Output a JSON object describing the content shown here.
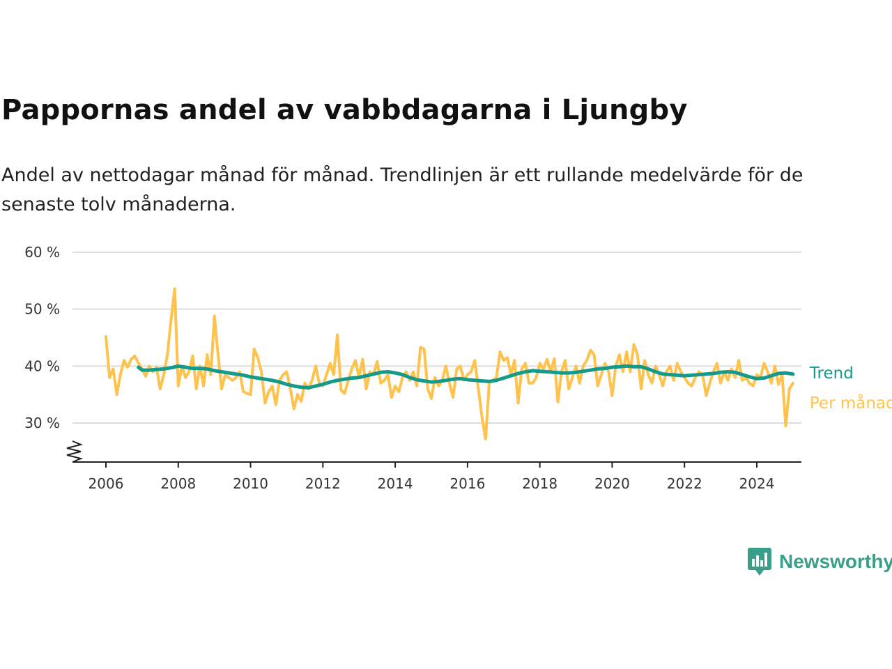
{
  "title": "Pappornas andel av vabbdagarna i Ljungby",
  "subtitle": "Andel av nettodagar månad för månad. Trendlinjen är ett rullande medelvärde för de senaste tolv månaderna.",
  "brand": {
    "name": "Newsworthy",
    "icon": "newsworthy-logo-icon",
    "color": "#3a9e8a"
  },
  "chart_data": {
    "type": "line",
    "yticks": [
      30,
      40,
      50,
      60
    ],
    "ytick_labels": [
      "30 %",
      "40 %",
      "50 %",
      "60 %"
    ],
    "ylim": [
      23,
      60
    ],
    "ybreak": true,
    "xticks": [
      2006,
      2008,
      2010,
      2012,
      2014,
      2016,
      2018,
      2020,
      2022,
      2024
    ],
    "xtick_labels": [
      "2006",
      "2008",
      "2010",
      "2012",
      "2014",
      "2016",
      "2018",
      "2020",
      "2022",
      "2024"
    ],
    "xlim": [
      2005.0,
      2025.2
    ],
    "grid": true,
    "legend_placement": "right, inline labels",
    "series": [
      {
        "name": "Per månad",
        "color": "#ffc34d",
        "points": [
          [
            2006.0,
            45.2
          ],
          [
            2006.1,
            38.0
          ],
          [
            2006.2,
            39.5
          ],
          [
            2006.3,
            35.0
          ],
          [
            2006.4,
            38.5
          ],
          [
            2006.5,
            41.0
          ],
          [
            2006.6,
            39.8
          ],
          [
            2006.7,
            41.2
          ],
          [
            2006.8,
            41.8
          ],
          [
            2006.9,
            40.5
          ],
          [
            2007.0,
            39.5
          ],
          [
            2007.1,
            38.2
          ],
          [
            2007.2,
            40.0
          ],
          [
            2007.3,
            39.0
          ],
          [
            2007.4,
            39.8
          ],
          [
            2007.5,
            36.0
          ],
          [
            2007.6,
            38.5
          ],
          [
            2007.7,
            42.0
          ],
          [
            2007.8,
            48.0
          ],
          [
            2007.9,
            53.6
          ],
          [
            2008.0,
            36.5
          ],
          [
            2008.1,
            40.0
          ],
          [
            2008.2,
            38.0
          ],
          [
            2008.3,
            39.0
          ],
          [
            2008.4,
            41.8
          ],
          [
            2008.5,
            36.0
          ],
          [
            2008.6,
            40.0
          ],
          [
            2008.7,
            36.5
          ],
          [
            2008.8,
            42.0
          ],
          [
            2008.9,
            38.5
          ],
          [
            2009.0,
            48.8
          ],
          [
            2009.1,
            42.0
          ],
          [
            2009.2,
            36.0
          ],
          [
            2009.3,
            38.5
          ],
          [
            2009.4,
            38.0
          ],
          [
            2009.5,
            37.5
          ],
          [
            2009.6,
            38.0
          ],
          [
            2009.7,
            39.0
          ],
          [
            2009.8,
            35.5
          ],
          [
            2009.9,
            35.2
          ],
          [
            2010.0,
            35.0
          ],
          [
            2010.1,
            43.0
          ],
          [
            2010.2,
            41.5
          ],
          [
            2010.3,
            39.0
          ],
          [
            2010.4,
            33.5
          ],
          [
            2010.5,
            35.5
          ],
          [
            2010.6,
            36.5
          ],
          [
            2010.7,
            33.2
          ],
          [
            2010.8,
            37.5
          ],
          [
            2010.9,
            38.5
          ],
          [
            2011.0,
            39.0
          ],
          [
            2011.1,
            36.0
          ],
          [
            2011.2,
            32.5
          ],
          [
            2011.3,
            35.0
          ],
          [
            2011.4,
            33.8
          ],
          [
            2011.5,
            37.0
          ],
          [
            2011.6,
            36.0
          ],
          [
            2011.7,
            37.5
          ],
          [
            2011.8,
            40.0
          ],
          [
            2011.9,
            37.0
          ],
          [
            2012.0,
            36.5
          ],
          [
            2012.1,
            38.5
          ],
          [
            2012.2,
            40.5
          ],
          [
            2012.3,
            38.5
          ],
          [
            2012.4,
            45.5
          ],
          [
            2012.5,
            35.8
          ],
          [
            2012.6,
            35.2
          ],
          [
            2012.7,
            37.5
          ],
          [
            2012.8,
            39.5
          ],
          [
            2012.9,
            41.0
          ],
          [
            2013.0,
            38.0
          ],
          [
            2013.1,
            41.2
          ],
          [
            2013.2,
            36.0
          ],
          [
            2013.3,
            39.0
          ],
          [
            2013.4,
            38.5
          ],
          [
            2013.5,
            40.8
          ],
          [
            2013.6,
            37.0
          ],
          [
            2013.7,
            37.5
          ],
          [
            2013.8,
            38.5
          ],
          [
            2013.9,
            34.5
          ],
          [
            2014.0,
            36.5
          ],
          [
            2014.1,
            35.5
          ],
          [
            2014.2,
            38.0
          ],
          [
            2014.3,
            39.0
          ],
          [
            2014.4,
            37.5
          ],
          [
            2014.5,
            39.0
          ],
          [
            2014.6,
            36.5
          ],
          [
            2014.7,
            43.3
          ],
          [
            2014.8,
            43.0
          ],
          [
            2014.9,
            36.0
          ],
          [
            2015.0,
            34.3
          ],
          [
            2015.1,
            38.0
          ],
          [
            2015.2,
            36.5
          ],
          [
            2015.3,
            37.5
          ],
          [
            2015.4,
            40.0
          ],
          [
            2015.5,
            37.0
          ],
          [
            2015.6,
            34.5
          ],
          [
            2015.7,
            39.5
          ],
          [
            2015.8,
            40.0
          ],
          [
            2015.9,
            37.5
          ],
          [
            2016.0,
            38.5
          ],
          [
            2016.1,
            39.0
          ],
          [
            2016.2,
            41.0
          ],
          [
            2016.3,
            36.0
          ],
          [
            2016.4,
            31.0
          ],
          [
            2016.5,
            27.2
          ],
          [
            2016.6,
            37.0
          ],
          [
            2016.7,
            37.5
          ],
          [
            2016.8,
            38.0
          ],
          [
            2016.9,
            42.5
          ],
          [
            2017.0,
            41.0
          ],
          [
            2017.1,
            41.5
          ],
          [
            2017.2,
            38.5
          ],
          [
            2017.3,
            41.0
          ],
          [
            2017.4,
            33.5
          ],
          [
            2017.5,
            39.5
          ],
          [
            2017.6,
            40.5
          ],
          [
            2017.7,
            37.0
          ],
          [
            2017.8,
            37.0
          ],
          [
            2017.9,
            38.0
          ],
          [
            2018.0,
            40.5
          ],
          [
            2018.1,
            39.5
          ],
          [
            2018.2,
            41.2
          ],
          [
            2018.3,
            39.0
          ],
          [
            2018.4,
            41.3
          ],
          [
            2018.5,
            33.7
          ],
          [
            2018.6,
            39.0
          ],
          [
            2018.7,
            41.0
          ],
          [
            2018.8,
            36.0
          ],
          [
            2018.9,
            38.0
          ],
          [
            2019.0,
            40.0
          ],
          [
            2019.1,
            37.0
          ],
          [
            2019.2,
            40.0
          ],
          [
            2019.3,
            41.0
          ],
          [
            2019.4,
            42.8
          ],
          [
            2019.5,
            42.0
          ],
          [
            2019.6,
            36.5
          ],
          [
            2019.7,
            38.5
          ],
          [
            2019.8,
            40.5
          ],
          [
            2019.9,
            39.0
          ],
          [
            2020.0,
            34.8
          ],
          [
            2020.1,
            40.0
          ],
          [
            2020.2,
            42.0
          ],
          [
            2020.3,
            39.0
          ],
          [
            2020.4,
            42.5
          ],
          [
            2020.5,
            39.0
          ],
          [
            2020.6,
            43.8
          ],
          [
            2020.7,
            42.0
          ],
          [
            2020.8,
            36.0
          ],
          [
            2020.9,
            41.0
          ],
          [
            2021.0,
            38.5
          ],
          [
            2021.1,
            37.0
          ],
          [
            2021.2,
            40.0
          ],
          [
            2021.3,
            38.5
          ],
          [
            2021.4,
            36.5
          ],
          [
            2021.5,
            39.0
          ],
          [
            2021.6,
            40.0
          ],
          [
            2021.7,
            37.5
          ],
          [
            2021.8,
            40.5
          ],
          [
            2021.9,
            39.0
          ],
          [
            2022.0,
            38.0
          ],
          [
            2022.1,
            37.0
          ],
          [
            2022.2,
            36.5
          ],
          [
            2022.3,
            38.0
          ],
          [
            2022.4,
            39.0
          ],
          [
            2022.5,
            38.5
          ],
          [
            2022.6,
            34.8
          ],
          [
            2022.7,
            37.0
          ],
          [
            2022.8,
            39.0
          ],
          [
            2022.9,
            40.5
          ],
          [
            2023.0,
            37.0
          ],
          [
            2023.1,
            39.0
          ],
          [
            2023.2,
            37.5
          ],
          [
            2023.3,
            39.5
          ],
          [
            2023.4,
            38.0
          ],
          [
            2023.5,
            41.0
          ],
          [
            2023.6,
            37.5
          ],
          [
            2023.7,
            38.0
          ],
          [
            2023.8,
            37.0
          ],
          [
            2023.9,
            36.5
          ],
          [
            2024.0,
            38.5
          ],
          [
            2024.1,
            38.0
          ],
          [
            2024.2,
            40.5
          ],
          [
            2024.3,
            39.0
          ],
          [
            2024.4,
            37.0
          ],
          [
            2024.5,
            40.0
          ],
          [
            2024.6,
            36.8
          ],
          [
            2024.7,
            38.5
          ],
          [
            2024.8,
            29.5
          ],
          [
            2024.9,
            36.0
          ],
          [
            2025.0,
            37.0
          ]
        ]
      },
      {
        "name": "Trend",
        "color": "#14998a",
        "points": [
          [
            2006.9,
            39.8
          ],
          [
            2007.0,
            39.3
          ],
          [
            2007.2,
            39.3
          ],
          [
            2007.4,
            39.4
          ],
          [
            2007.6,
            39.5
          ],
          [
            2007.8,
            39.7
          ],
          [
            2008.0,
            40.0
          ],
          [
            2008.2,
            39.8
          ],
          [
            2008.4,
            39.6
          ],
          [
            2008.6,
            39.6
          ],
          [
            2008.8,
            39.5
          ],
          [
            2009.0,
            39.2
          ],
          [
            2009.2,
            39.0
          ],
          [
            2009.4,
            38.8
          ],
          [
            2009.6,
            38.6
          ],
          [
            2009.8,
            38.4
          ],
          [
            2010.0,
            38.1
          ],
          [
            2010.2,
            37.9
          ],
          [
            2010.4,
            37.7
          ],
          [
            2010.6,
            37.5
          ],
          [
            2010.8,
            37.2
          ],
          [
            2011.0,
            36.8
          ],
          [
            2011.2,
            36.5
          ],
          [
            2011.4,
            36.3
          ],
          [
            2011.6,
            36.2
          ],
          [
            2011.8,
            36.5
          ],
          [
            2012.0,
            36.8
          ],
          [
            2012.2,
            37.2
          ],
          [
            2012.4,
            37.5
          ],
          [
            2012.6,
            37.7
          ],
          [
            2012.8,
            37.9
          ],
          [
            2013.0,
            38.0
          ],
          [
            2013.2,
            38.3
          ],
          [
            2013.4,
            38.6
          ],
          [
            2013.6,
            38.9
          ],
          [
            2013.8,
            39.0
          ],
          [
            2014.0,
            38.8
          ],
          [
            2014.2,
            38.5
          ],
          [
            2014.4,
            38.0
          ],
          [
            2014.6,
            37.6
          ],
          [
            2014.8,
            37.4
          ],
          [
            2015.0,
            37.2
          ],
          [
            2015.2,
            37.3
          ],
          [
            2015.4,
            37.5
          ],
          [
            2015.6,
            37.7
          ],
          [
            2015.8,
            37.8
          ],
          [
            2016.0,
            37.6
          ],
          [
            2016.2,
            37.5
          ],
          [
            2016.4,
            37.4
          ],
          [
            2016.6,
            37.3
          ],
          [
            2016.8,
            37.5
          ],
          [
            2017.0,
            37.9
          ],
          [
            2017.2,
            38.3
          ],
          [
            2017.4,
            38.7
          ],
          [
            2017.6,
            39.0
          ],
          [
            2017.8,
            39.2
          ],
          [
            2018.0,
            39.1
          ],
          [
            2018.2,
            39.0
          ],
          [
            2018.4,
            38.9
          ],
          [
            2018.6,
            38.8
          ],
          [
            2018.8,
            38.8
          ],
          [
            2019.0,
            38.9
          ],
          [
            2019.2,
            39.1
          ],
          [
            2019.4,
            39.3
          ],
          [
            2019.6,
            39.5
          ],
          [
            2019.8,
            39.6
          ],
          [
            2020.0,
            39.8
          ],
          [
            2020.2,
            39.9
          ],
          [
            2020.4,
            40.0
          ],
          [
            2020.6,
            39.9
          ],
          [
            2020.8,
            39.9
          ],
          [
            2021.0,
            39.5
          ],
          [
            2021.2,
            39.0
          ],
          [
            2021.4,
            38.6
          ],
          [
            2021.6,
            38.5
          ],
          [
            2021.8,
            38.4
          ],
          [
            2022.0,
            38.3
          ],
          [
            2022.2,
            38.4
          ],
          [
            2022.4,
            38.5
          ],
          [
            2022.6,
            38.6
          ],
          [
            2022.8,
            38.7
          ],
          [
            2023.0,
            38.9
          ],
          [
            2023.2,
            39.0
          ],
          [
            2023.4,
            38.9
          ],
          [
            2023.6,
            38.5
          ],
          [
            2023.8,
            38.1
          ],
          [
            2024.0,
            37.8
          ],
          [
            2024.2,
            37.9
          ],
          [
            2024.4,
            38.3
          ],
          [
            2024.6,
            38.7
          ],
          [
            2024.8,
            38.8
          ],
          [
            2025.0,
            38.6
          ]
        ]
      }
    ]
  }
}
